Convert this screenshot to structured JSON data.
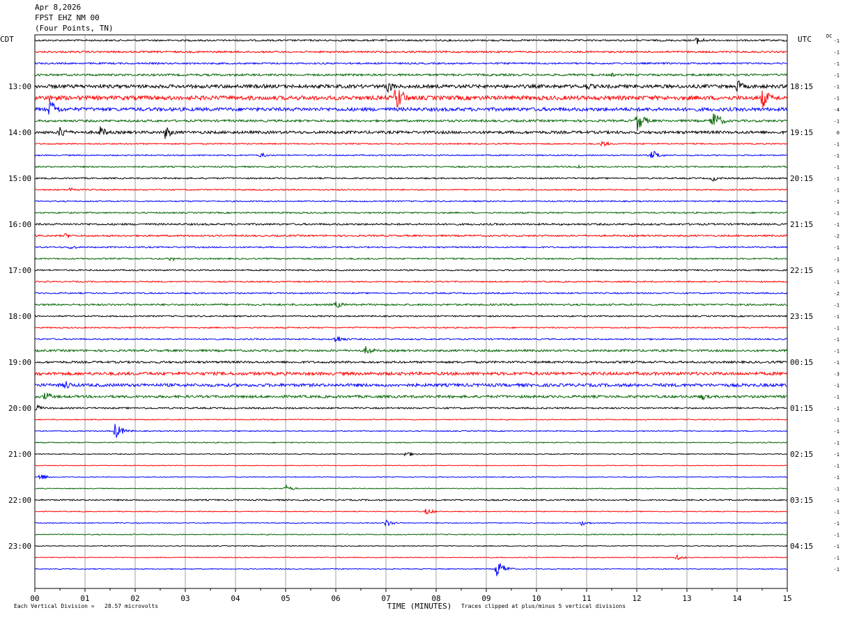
{
  "header": {
    "date": "Apr 8,2026",
    "station": "FPST EHZ NM 00",
    "location": "(Four Points, TN)"
  },
  "left_tz": "CDT",
  "right_tz": "UTC",
  "dc_label": "DC",
  "footer": {
    "scale_note": "Each Vertical Division =   28.57 microvolts",
    "clip_note": "Traces clipped at plus/minus 5 vertical divisions"
  },
  "chart_data": {
    "type": "helicorder",
    "xlabel": "TIME (MINUTES)",
    "x_ticks": [
      "00",
      "01",
      "02",
      "03",
      "04",
      "05",
      "06",
      "07",
      "08",
      "09",
      "10",
      "11",
      "12",
      "13",
      "14",
      "15"
    ],
    "xlim": [
      0,
      15
    ],
    "minutes_per_line": 15,
    "trace_colors": [
      "#000000",
      "#ff0000",
      "#0000ff",
      "#006400"
    ],
    "left_time_labels": [
      {
        "line": 4,
        "text": "13:00"
      },
      {
        "line": 8,
        "text": "14:00"
      },
      {
        "line": 12,
        "text": "15:00"
      },
      {
        "line": 16,
        "text": "16:00"
      },
      {
        "line": 20,
        "text": "17:00"
      },
      {
        "line": 24,
        "text": "18:00"
      },
      {
        "line": 28,
        "text": "19:00"
      },
      {
        "line": 32,
        "text": "20:00"
      },
      {
        "line": 36,
        "text": "21:00"
      },
      {
        "line": 40,
        "text": "22:00"
      },
      {
        "line": 44,
        "text": "23:00"
      }
    ],
    "right_time_labels": [
      {
        "line": 4,
        "text": "18:15"
      },
      {
        "line": 8,
        "text": "19:15"
      },
      {
        "line": 12,
        "text": "20:15"
      },
      {
        "line": 16,
        "text": "21:15"
      },
      {
        "line": 20,
        "text": "22:15"
      },
      {
        "line": 24,
        "text": "23:15"
      },
      {
        "line": 28,
        "text": "00:15"
      },
      {
        "line": 32,
        "text": "01:15"
      },
      {
        "line": 36,
        "text": "02:15"
      },
      {
        "line": 40,
        "text": "03:15"
      },
      {
        "line": 44,
        "text": "04:15"
      }
    ],
    "dc_offsets": [
      "-1",
      "-1",
      "-1",
      "-1",
      "-1",
      "-1",
      "-4",
      "-1",
      "0",
      "-1",
      "-1",
      "-1",
      "-1",
      "-1",
      "-1",
      "-1",
      "-1",
      "-2",
      "-1",
      "-1",
      "-1",
      "-1",
      "-2",
      "-1",
      "-1",
      "-1",
      "-1",
      "-1",
      "-1",
      "-3",
      "-1",
      "-1",
      "-1",
      "-1",
      "-1",
      "-1",
      "-1",
      "-1",
      "-1",
      "-1",
      "-1",
      "-1",
      "-1",
      "-1",
      "-1",
      "-1",
      "-1"
    ],
    "trace_noise": [
      1.2,
      1.3,
      1.2,
      1.5,
      2.5,
      3.0,
      2.5,
      1.6,
      2.0,
      0.9,
      0.9,
      1.0,
      1.0,
      0.9,
      0.9,
      1.0,
      1.3,
      1.2,
      1.0,
      1.0,
      1.0,
      0.9,
      1.0,
      1.3,
      1.0,
      0.9,
      1.0,
      1.5,
      1.5,
      2.2,
      2.2,
      1.8,
      1.1,
      0.7,
      0.7,
      0.7,
      0.6,
      0.5,
      0.5,
      0.6,
      1.0,
      0.6,
      0.6,
      0.7,
      0.6,
      0.6,
      0.6
    ],
    "events": [
      {
        "line": 0,
        "minute": 13.2,
        "amp": 6
      },
      {
        "line": 3,
        "minute": 11.5,
        "amp": 3
      },
      {
        "line": 4,
        "minute": 7.0,
        "amp": 12
      },
      {
        "line": 4,
        "minute": 11.0,
        "amp": 6
      },
      {
        "line": 4,
        "minute": 14.0,
        "amp": 10
      },
      {
        "line": 5,
        "minute": 7.2,
        "amp": 22
      },
      {
        "line": 5,
        "minute": 0.3,
        "amp": 8
      },
      {
        "line": 5,
        "minute": 14.5,
        "amp": 16
      },
      {
        "line": 6,
        "minute": 0.3,
        "amp": 16
      },
      {
        "line": 7,
        "minute": 12.0,
        "amp": 16
      },
      {
        "line": 7,
        "minute": 13.5,
        "amp": 18
      },
      {
        "line": 8,
        "minute": 0.5,
        "amp": 10
      },
      {
        "line": 8,
        "minute": 1.3,
        "amp": 9
      },
      {
        "line": 8,
        "minute": 2.6,
        "amp": 10
      },
      {
        "line": 9,
        "minute": 11.3,
        "amp": 5
      },
      {
        "line": 10,
        "minute": 4.5,
        "amp": 4
      },
      {
        "line": 10,
        "minute": 12.3,
        "amp": 8
      },
      {
        "line": 11,
        "minute": 10.8,
        "amp": 4
      },
      {
        "line": 12,
        "minute": 13.5,
        "amp": 5
      },
      {
        "line": 13,
        "minute": 0.7,
        "amp": 4
      },
      {
        "line": 17,
        "minute": 0.6,
        "amp": 4
      },
      {
        "line": 18,
        "minute": 0.7,
        "amp": 4
      },
      {
        "line": 19,
        "minute": 2.7,
        "amp": 4
      },
      {
        "line": 23,
        "minute": 6.0,
        "amp": 6
      },
      {
        "line": 26,
        "minute": 6.0,
        "amp": 7
      },
      {
        "line": 27,
        "minute": 6.6,
        "amp": 7
      },
      {
        "line": 30,
        "minute": 0.6,
        "amp": 8
      },
      {
        "line": 31,
        "minute": 0.2,
        "amp": 8
      },
      {
        "line": 31,
        "minute": 13.3,
        "amp": 6
      },
      {
        "line": 32,
        "minute": 0.0,
        "amp": 6
      },
      {
        "line": 34,
        "minute": 1.6,
        "amp": 12
      },
      {
        "line": 36,
        "minute": 7.4,
        "amp": 5
      },
      {
        "line": 38,
        "minute": 0.1,
        "amp": 6
      },
      {
        "line": 39,
        "minute": 5.0,
        "amp": 5
      },
      {
        "line": 41,
        "minute": 7.8,
        "amp": 5
      },
      {
        "line": 42,
        "minute": 7.0,
        "amp": 6
      },
      {
        "line": 42,
        "minute": 10.9,
        "amp": 4
      },
      {
        "line": 45,
        "minute": 12.8,
        "amp": 4
      },
      {
        "line": 46,
        "minute": 9.2,
        "amp": 14
      }
    ]
  }
}
